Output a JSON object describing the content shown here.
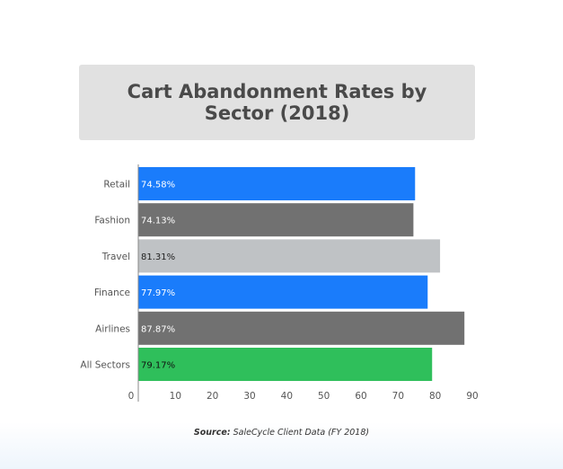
{
  "chart_data": {
    "type": "bar",
    "orientation": "horizontal",
    "title": "Cart Abandonment Rates by Sector (2018)",
    "categories": [
      "Retail",
      "Fashion",
      "Travel",
      "Finance",
      "Airlines",
      "All Sectors"
    ],
    "values": [
      74.58,
      74.13,
      81.31,
      77.97,
      87.87,
      79.17
    ],
    "data_labels": [
      "74.58%",
      "74.13%",
      "81.31%",
      "77.97%",
      "87.87%",
      "79.17%"
    ],
    "bar_colors": [
      "#1a7cfb",
      "#717171",
      "#bfc2c5",
      "#1a7cfb",
      "#717171",
      "#2fbf5b"
    ],
    "label_colors": [
      "#ffffff",
      "#ffffff",
      "#222222",
      "#ffffff",
      "#ffffff",
      "#111111"
    ],
    "xticks": [
      0,
      10,
      20,
      30,
      40,
      50,
      60,
      70,
      80,
      90
    ],
    "xlim": [
      0,
      90
    ],
    "xlabel": "",
    "ylabel": "",
    "grid": false,
    "legend": "none"
  },
  "source": {
    "label": "Source:",
    "text": "SaleCycle Client Data (FY 2018)"
  }
}
